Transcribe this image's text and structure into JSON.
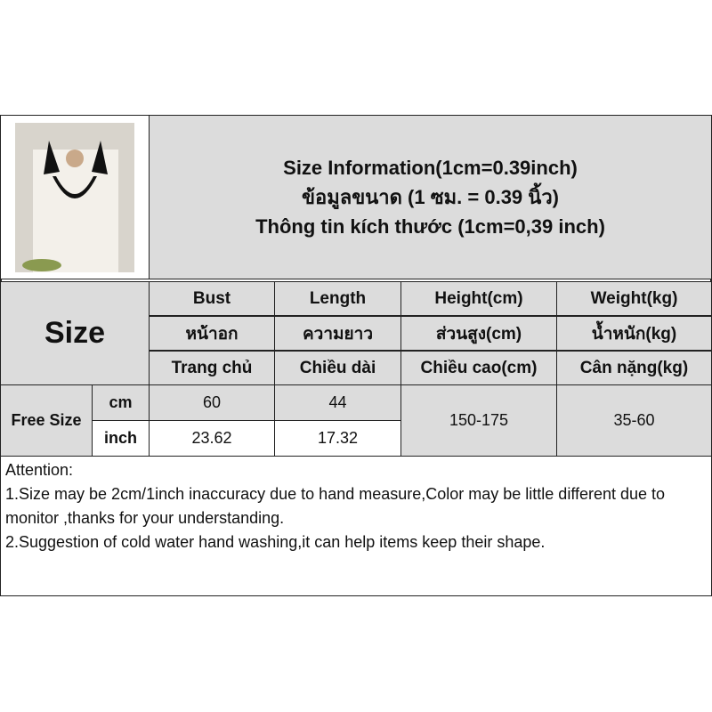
{
  "title": {
    "line1": "Size Information(1cm=0.39inch)",
    "line2": "ข้อมูลขนาด (1 ซม. = 0.39 นิ้ว)",
    "line3": "Thông tin kích thước (1cm=0,39 inch)"
  },
  "size_label": "Size",
  "columns": [
    {
      "en": "Bust",
      "th": "หน้าอก",
      "vi": "Trang chủ"
    },
    {
      "en": "Length",
      "th": "ความยาว",
      "vi": "Chiều dài"
    },
    {
      "en": "Height(cm)",
      "th": "ส่วนสูง(cm)",
      "vi": "Chiều cao(cm)"
    },
    {
      "en": "Weight(kg)",
      "th": "น้ำหนัก(kg)",
      "vi": "Cân nặng(kg)"
    }
  ],
  "row": {
    "name": "Free Size",
    "units": [
      "cm",
      "inch"
    ],
    "bust": [
      "60",
      "23.62"
    ],
    "length": [
      "44",
      "17.32"
    ],
    "height": "150-175",
    "weight": "35-60"
  },
  "attention": {
    "heading": "Attention:",
    "notes": [
      "1.Size may be 2cm/1inch inaccuracy due to hand measure,Color may be little different due to monitor ,thanks for your understanding.",
      "2.Suggestion of cold water hand washing,it can help items keep their shape."
    ]
  }
}
